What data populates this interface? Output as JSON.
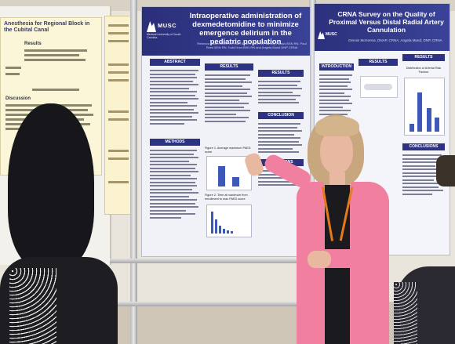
{
  "scene": {
    "type": "photograph",
    "colors": {
      "poster_header": "#2b2f7a",
      "cardigan": "#f07fa0",
      "left_poster_bg": "#fbf6d8"
    }
  },
  "left_poster": {
    "title": "Anesthesia for Regional Block in the Cubital Canal",
    "section_results": "Results",
    "section_discussion": "Discussion"
  },
  "center_poster": {
    "title": "Intraoperative administration of dexmedetomidine to minimize emergence delirium in the pediatric population",
    "logo": "MUSC",
    "logo_sub": "Medical University of South Carolina",
    "authors": "Rebecca Bloom BSN RN, Ruth Bowen BSN RN, Tammy Hawks BSN RN, Paul Reed BSN RN, Todd Hoot BSN RN and Angela Mund DNP CRNA",
    "sections": [
      "ABSTRACT",
      "RESULTS",
      "RESULTS",
      "CONCLUSION",
      "LIMITATIONS",
      "METHODS"
    ],
    "figure1_caption": "Figure 1. Average maximum PAED score",
    "figure2_caption": "Figure 2. Time at maximum from enrollment to max PAED score"
  },
  "right_poster": {
    "title": "CRNA Survey on the Quality of Proximal Versus Distal Radial Artery Cannulation",
    "authors": "Dennis McKenna, DNAP, CRNA, Angela Mund, DNP, CRNA",
    "logo": "MUSC",
    "sections": [
      "INTRODUCTION",
      "RESULTS",
      "RESULTS",
      "CONCLUSIONS"
    ],
    "chart_caption": "Distribution of Arterial Risk Factors"
  }
}
